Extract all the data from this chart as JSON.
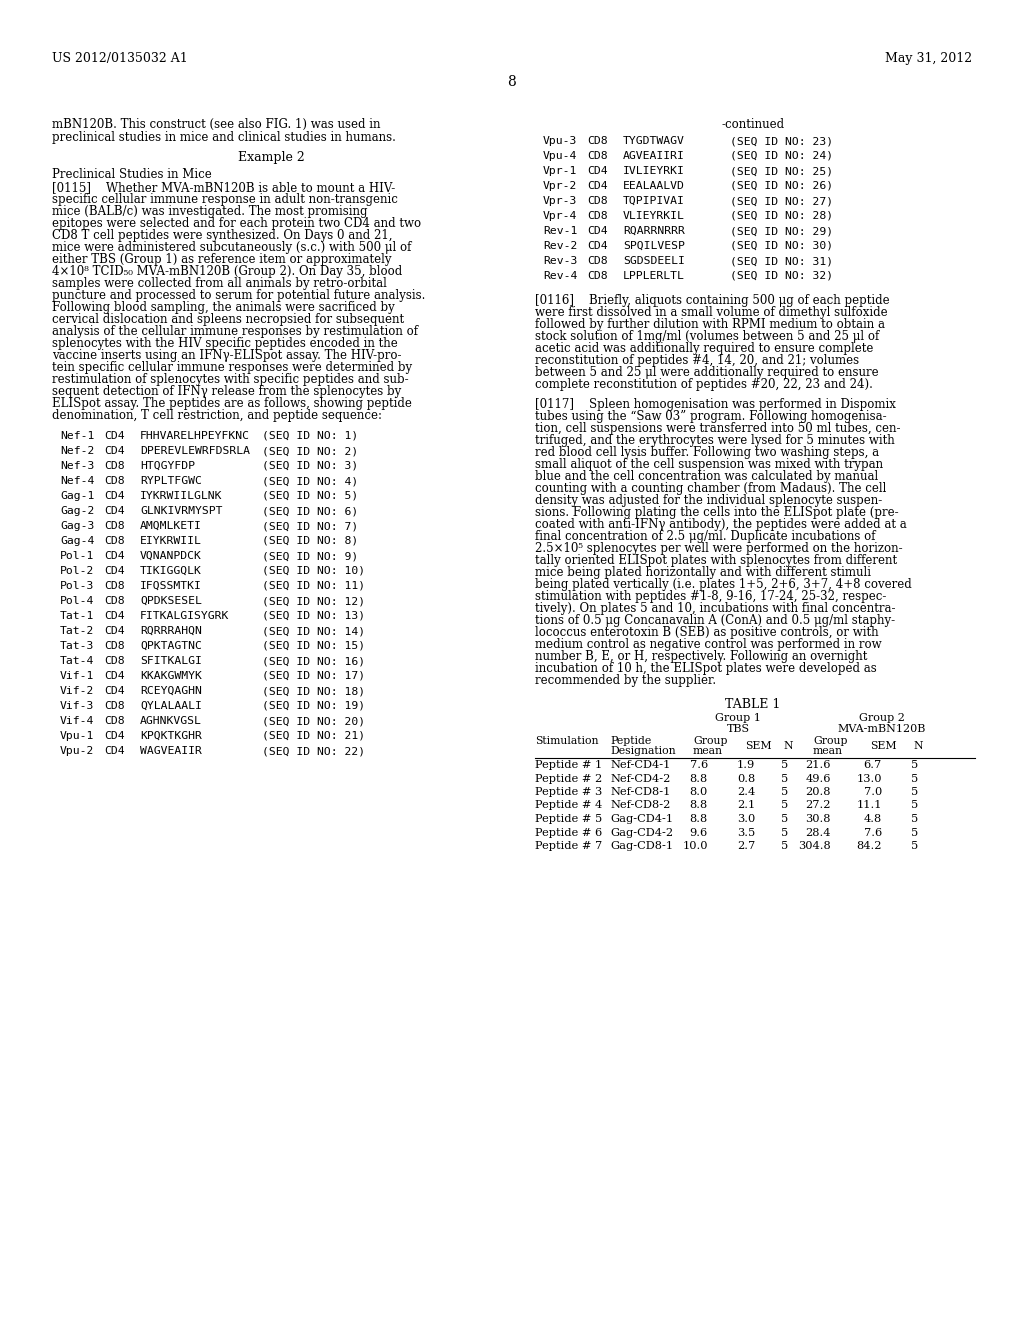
{
  "page_number": "8",
  "header_left": "US 2012/0135032 A1",
  "header_right": "May 31, 2012",
  "background_color": "#ffffff",
  "intro_line1": "mBN120B. This construct (see also FIG. 1) was used in",
  "intro_line2": "preclinical studies in mice and clinical studies in humans.",
  "example_heading": "Example 2",
  "preclinical_heading": "Preclinical Studies in Mice",
  "para_0115_lines": [
    "[0115]    Whether MVA-mBN120B is able to mount a HIV-",
    "specific cellular immune response in adult non-transgenic",
    "mice (BALB/c) was investigated. The most promising",
    "epitopes were selected and for each protein two CD4 and two",
    "CD8 T cell peptides were synthesized. On Days 0 and 21,",
    "mice were administered subcutaneously (s.c.) with 500 μl of",
    "either TBS (Group 1) as reference item or approximately",
    "4×10⁸ TCID₅₀ MVA-mBN120B (Group 2). On Day 35, blood",
    "samples were collected from all animals by retro-orbital",
    "puncture and processed to serum for potential future analysis.",
    "Following blood sampling, the animals were sacrificed by",
    "cervical dislocation and spleens necropsied for subsequent",
    "analysis of the cellular immune responses by restimulation of",
    "splenocytes with the HIV specific peptides encoded in the",
    "vaccine inserts using an IFNγ-ELISpot assay. The HIV-pro-",
    "tein specific cellular immune responses were determined by",
    "restimulation of splenocytes with specific peptides and sub-",
    "sequent detection of IFNγ release from the splenocytes by",
    "ELISpot assay. The peptides are as follows, showing peptide",
    "denomination, T cell restriction, and peptide sequence:"
  ],
  "peptides_left": [
    [
      "Nef-1",
      "CD4",
      "FHHVARELHPEYFKNC",
      "(SEQ ID NO: 1)"
    ],
    [
      "Nef-2",
      "CD4",
      "DPEREVLEWRFDSRLA",
      "(SEQ ID NO: 2)"
    ],
    [
      "Nef-3",
      "CD8",
      "HTQGYFDP",
      "(SEQ ID NO: 3)"
    ],
    [
      "Nef-4",
      "CD8",
      "RYPLTFGWC",
      "(SEQ ID NO: 4)"
    ],
    [
      "Gag-1",
      "CD4",
      "IYKRWIILGLNK",
      "(SEQ ID NO: 5)"
    ],
    [
      "Gag-2",
      "CD4",
      "GLNKIVRMYSPT",
      "(SEQ ID NO: 6)"
    ],
    [
      "Gag-3",
      "CD8",
      "AMQMLKETI",
      "(SEQ ID NO: 7)"
    ],
    [
      "Gag-4",
      "CD8",
      "EIYKRWIIL",
      "(SEQ ID NO: 8)"
    ],
    [
      "Pol-1",
      "CD4",
      "VQNANPDCK",
      "(SEQ ID NO: 9)"
    ],
    [
      "Pol-2",
      "CD4",
      "TIKIGGQLK",
      "(SEQ ID NO: 10)"
    ],
    [
      "Pol-3",
      "CD8",
      "IFQSSMTKI",
      "(SEQ ID NO: 11)"
    ],
    [
      "Pol-4",
      "CD8",
      "QPDKSESEL",
      "(SEQ ID NO: 12)"
    ],
    [
      "Tat-1",
      "CD4",
      "FITKALGISYGRK",
      "(SEQ ID NO: 13)"
    ],
    [
      "Tat-2",
      "CD4",
      "RQRRRAHQN",
      "(SEQ ID NO: 14)"
    ],
    [
      "Tat-3",
      "CD8",
      "QPKTAGTNC",
      "(SEQ ID NO: 15)"
    ],
    [
      "Tat-4",
      "CD8",
      "SFITKALGI",
      "(SEQ ID NO: 16)"
    ],
    [
      "Vif-1",
      "CD4",
      "KKAKGWMYK",
      "(SEQ ID NO: 17)"
    ],
    [
      "Vif-2",
      "CD4",
      "RCEYQAGHN",
      "(SEQ ID NO: 18)"
    ],
    [
      "Vif-3",
      "CD8",
      "QYLALAALI",
      "(SEQ ID NO: 19)"
    ],
    [
      "Vif-4",
      "CD8",
      "AGHNKVGSL",
      "(SEQ ID NO: 20)"
    ],
    [
      "Vpu-1",
      "CD4",
      "KPQKTKGHR",
      "(SEQ ID NO: 21)"
    ],
    [
      "Vpu-2",
      "CD4",
      "WAGVEAIIR",
      "(SEQ ID NO: 22)"
    ]
  ],
  "continued_label": "-continued",
  "peptides_right": [
    [
      "Vpu-3",
      "CD8",
      "TYGDTWAGV",
      "(SEQ ID NO: 23)"
    ],
    [
      "Vpu-4",
      "CD8",
      "AGVEAIIRI",
      "(SEQ ID NO: 24)"
    ],
    [
      "Vpr-1",
      "CD4",
      "IVLIEYRKI",
      "(SEQ ID NO: 25)"
    ],
    [
      "Vpr-2",
      "CD4",
      "EEALAALVD",
      "(SEQ ID NO: 26)"
    ],
    [
      "Vpr-3",
      "CD8",
      "TQPIPIVAI",
      "(SEQ ID NO: 27)"
    ],
    [
      "Vpr-4",
      "CD8",
      "VLIEYRKIL",
      "(SEQ ID NO: 28)"
    ],
    [
      "Rev-1",
      "CD4",
      "RQARRNRRR",
      "(SEQ ID NO: 29)"
    ],
    [
      "Rev-2",
      "CD4",
      "SPQILVESP",
      "(SEQ ID NO: 30)"
    ],
    [
      "Rev-3",
      "CD8",
      "SGDSDEELI",
      "(SEQ ID NO: 31)"
    ],
    [
      "Rev-4",
      "CD8",
      "LPPLERLTL",
      "(SEQ ID NO: 32)"
    ]
  ],
  "para_0116_lines": [
    "[0116]    Briefly, aliquots containing 500 μg of each peptide",
    "were first dissolved in a small volume of dimethyl sulfoxide",
    "followed by further dilution with RPMI medium to obtain a",
    "stock solution of 1mg/ml (volumes between 5 and 25 μl of",
    "acetic acid was additionally required to ensure complete",
    "reconstitution of peptides #4, 14, 20, and 21; volumes",
    "between 5 and 25 μl were additionally required to ensure",
    "complete reconstitution of peptides #20, 22, 23 and 24)."
  ],
  "para_0117_lines": [
    "[0117]    Spleen homogenisation was performed in Dispomix",
    "tubes using the “Saw 03” program. Following homogenisa-",
    "tion, cell suspensions were transferred into 50 ml tubes, cen-",
    "trifuged, and the erythrocytes were lysed for 5 minutes with",
    "red blood cell lysis buffer. Following two washing steps, a",
    "small aliquot of the cell suspension was mixed with trypan",
    "blue and the cell concentration was calculated by manual",
    "counting with a counting chamber (from Madaus). The cell",
    "density was adjusted for the individual splenocyte suspen-",
    "sions. Following plating the cells into the ELISpot plate (pre-",
    "coated with anti-IFNγ antibody), the peptides were added at a",
    "final concentration of 2.5 μg/ml. Duplicate incubations of",
    "2.5×10⁵ splenocytes per well were performed on the horizon-",
    "tally oriented ELISpot plates with splenocytes from different",
    "mice being plated horizontally and with different stimuli",
    "being plated vertically (i.e. plates 1+5, 2+6, 3+7, 4+8 covered",
    "stimulation with peptides #1-8, 9-16, 17-24, 25-32, respec-",
    "tively). On plates 5 and 10, incubations with final concentra-",
    "tions of 0.5 μg Concanavalin A (ConA) and 0.5 μg/ml staphy-",
    "lococcus enterotoxin B (SEB) as positive controls, or with",
    "medium control as negative control was performed in row",
    "number B, E, or H, respectively. Following an overnight",
    "incubation of 10 h, the ELISpot plates were developed as",
    "recommended by the supplier."
  ],
  "table_title": "TABLE 1",
  "table_data": [
    [
      "Peptide # 1",
      "Nef-CD4-1",
      "7.6",
      "1.9",
      "5",
      "21.6",
      "6.7",
      "5"
    ],
    [
      "Peptide # 2",
      "Nef-CD4-2",
      "8.8",
      "0.8",
      "5",
      "49.6",
      "13.0",
      "5"
    ],
    [
      "Peptide # 3",
      "Nef-CD8-1",
      "8.0",
      "2.4",
      "5",
      "20.8",
      "7.0",
      "5"
    ],
    [
      "Peptide # 4",
      "Nef-CD8-2",
      "8.8",
      "2.1",
      "5",
      "27.2",
      "11.1",
      "5"
    ],
    [
      "Peptide # 5",
      "Gag-CD4-1",
      "8.8",
      "3.0",
      "5",
      "30.8",
      "4.8",
      "5"
    ],
    [
      "Peptide # 6",
      "Gag-CD4-2",
      "9.6",
      "3.5",
      "5",
      "28.4",
      "7.6",
      "5"
    ],
    [
      "Peptide # 7",
      "Gag-CD8-1",
      "10.0",
      "2.7",
      "5",
      "304.8",
      "84.2",
      "5"
    ]
  ]
}
